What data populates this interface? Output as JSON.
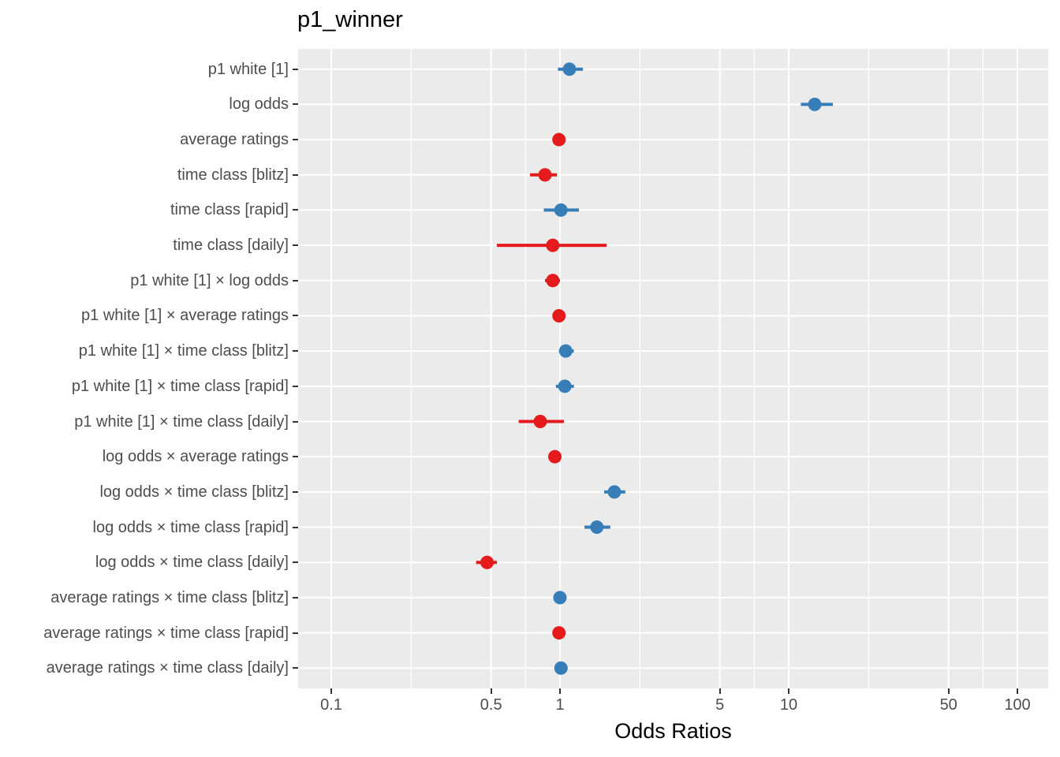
{
  "chart_data": {
    "type": "scatter",
    "subtype": "forest-plot",
    "title": "p1_winner",
    "xlabel": "Odds Ratios",
    "ylabel": "",
    "x_scale": "log10",
    "x_ticks": [
      0.1,
      0.5,
      1,
      5,
      10,
      50,
      100
    ],
    "x_tick_labels": [
      "0.1",
      "0.5",
      "1",
      "5",
      "10",
      "50",
      "100"
    ],
    "x_range": [
      0.072,
      135
    ],
    "grid": true,
    "legend": false,
    "colors": {
      "positive": "#377EB8",
      "negative": "#E41A1C",
      "panel_bg": "#EBEBEB",
      "grid": "#FFFFFF",
      "tick": "#333333",
      "axis_text": "#4D4D4D",
      "title_text": "#000000"
    },
    "rows": [
      {
        "label": "p1 white [1]",
        "or": 1.1,
        "ci_low": 0.98,
        "ci_high": 1.26,
        "color": "positive"
      },
      {
        "label": "log odds",
        "or": 13.0,
        "ci_low": 11.3,
        "ci_high": 15.6,
        "color": "positive"
      },
      {
        "label": "average ratings",
        "or": 0.99,
        "ci_low": 0.97,
        "ci_high": 1.01,
        "color": "negative"
      },
      {
        "label": "time class [blitz]",
        "or": 0.86,
        "ci_low": 0.74,
        "ci_high": 0.97,
        "color": "negative"
      },
      {
        "label": "time class [rapid]",
        "or": 1.01,
        "ci_low": 0.85,
        "ci_high": 1.21,
        "color": "positive"
      },
      {
        "label": "time class [daily]",
        "or": 0.93,
        "ci_low": 0.53,
        "ci_high": 1.6,
        "color": "negative"
      },
      {
        "label": "p1 white [1] × log odds",
        "or": 0.93,
        "ci_low": 0.86,
        "ci_high": 1.0,
        "color": "negative"
      },
      {
        "label": "p1 white [1] × average ratings",
        "or": 0.99,
        "ci_low": 0.97,
        "ci_high": 1.01,
        "color": "negative"
      },
      {
        "label": "p1 white [1] × time class [blitz]",
        "or": 1.06,
        "ci_low": 0.99,
        "ci_high": 1.15,
        "color": "positive"
      },
      {
        "label": "p1 white [1] × time class [rapid]",
        "or": 1.05,
        "ci_low": 0.96,
        "ci_high": 1.15,
        "color": "positive"
      },
      {
        "label": "p1 white [1] × time class [daily]",
        "or": 0.82,
        "ci_low": 0.66,
        "ci_high": 1.04,
        "color": "negative"
      },
      {
        "label": "log odds × average ratings",
        "or": 0.95,
        "ci_low": 0.93,
        "ci_high": 0.98,
        "color": "negative"
      },
      {
        "label": "log odds × time class [blitz]",
        "or": 1.73,
        "ci_low": 1.56,
        "ci_high": 1.93,
        "color": "positive"
      },
      {
        "label": "log odds × time class [rapid]",
        "or": 1.45,
        "ci_low": 1.28,
        "ci_high": 1.66,
        "color": "positive"
      },
      {
        "label": "log odds × time class [daily]",
        "or": 0.48,
        "ci_low": 0.43,
        "ci_high": 0.53,
        "color": "negative"
      },
      {
        "label": "average ratings × time class [blitz]",
        "or": 1.0,
        "ci_low": 0.97,
        "ci_high": 1.04,
        "color": "positive"
      },
      {
        "label": "average ratings × time class [rapid]",
        "or": 0.99,
        "ci_low": 0.96,
        "ci_high": 1.02,
        "color": "negative"
      },
      {
        "label": "average ratings × time class [daily]",
        "or": 1.01,
        "ci_low": 0.95,
        "ci_high": 1.08,
        "color": "positive"
      }
    ]
  }
}
